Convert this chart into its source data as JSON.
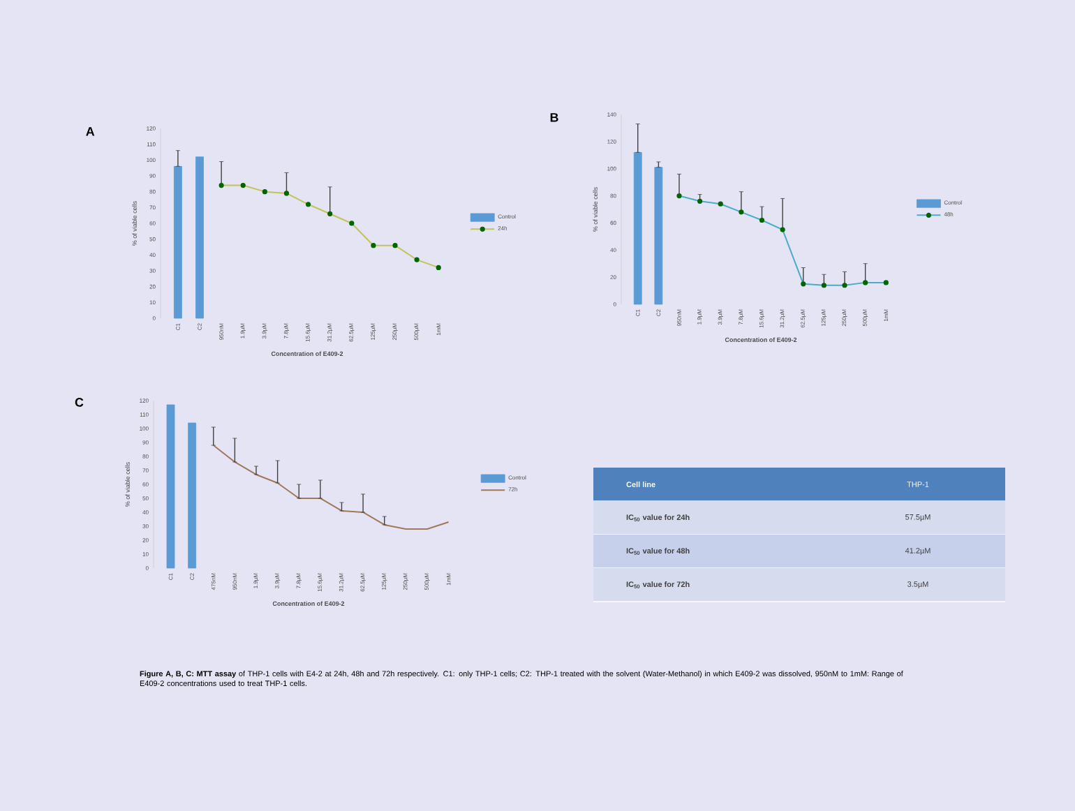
{
  "chart_data": [
    {
      "type": "line",
      "title": "A",
      "xlabel": "Concentration of E409-2",
      "ylabel": "% of viable cells",
      "categories": [
        "C1",
        "C2",
        "950nM",
        "1.9µM",
        "3.9µM",
        "7.8µM",
        "15.6µM",
        "31.2µM",
        "62.5µM",
        "125µM",
        "250µM",
        "500µM",
        "1mM"
      ],
      "ylim": [
        0,
        120
      ],
      "yticks": [
        0,
        10,
        20,
        30,
        40,
        50,
        60,
        70,
        80,
        90,
        100,
        110,
        120
      ],
      "legend": "right",
      "marker": "circle",
      "series": [
        {
          "name": "Control",
          "type": "bar",
          "color": "#5b9bd5",
          "values": [
            96,
            102,
            null,
            null,
            null,
            null,
            null,
            null,
            null,
            null,
            null,
            null,
            null
          ],
          "errors": [
            [
              96,
              106
            ],
            null,
            null,
            null,
            null,
            null,
            null,
            null,
            null,
            null,
            null,
            null,
            null
          ]
        },
        {
          "name": "24h",
          "type": "line",
          "color": "#c3c35a",
          "values": [
            null,
            null,
            84,
            84,
            80,
            79,
            72,
            66,
            60,
            46,
            46,
            37,
            32
          ],
          "errors": [
            null,
            null,
            [
              84,
              99
            ],
            null,
            null,
            [
              79,
              92
            ],
            null,
            [
              66,
              83
            ],
            null,
            null,
            null,
            null,
            null
          ]
        }
      ]
    },
    {
      "type": "line",
      "title": "B",
      "xlabel": "Concentration of E409-2",
      "ylabel": "% of viable cells",
      "categories": [
        "C1",
        "C2",
        "950nM",
        "1.9µM",
        "3.9µM",
        "7.8µM",
        "15.6µM",
        "31.2µM",
        "62.5µM",
        "125µM",
        "250µM",
        "500µM",
        "1mM"
      ],
      "ylim": [
        0,
        140
      ],
      "yticks": [
        0,
        20,
        40,
        60,
        80,
        100,
        120,
        140
      ],
      "legend": "right",
      "marker": "circle",
      "series": [
        {
          "name": "Control",
          "type": "bar",
          "color": "#5b9bd5",
          "values": [
            112,
            101,
            null,
            null,
            null,
            null,
            null,
            null,
            null,
            null,
            null,
            null,
            null
          ],
          "errors": [
            [
              112,
              133
            ],
            [
              101,
              105
            ],
            null,
            null,
            null,
            null,
            null,
            null,
            null,
            null,
            null,
            null,
            null
          ]
        },
        {
          "name": "48h",
          "type": "line",
          "color": "#4bacc6",
          "values": [
            null,
            null,
            80,
            76,
            74,
            68,
            62,
            55,
            15,
            14,
            14,
            16,
            16
          ],
          "errors": [
            null,
            null,
            [
              80,
              96
            ],
            [
              76,
              81
            ],
            null,
            [
              68,
              83
            ],
            [
              62,
              72
            ],
            [
              55,
              78
            ],
            [
              15,
              27
            ],
            [
              14,
              22
            ],
            [
              14,
              24
            ],
            [
              16,
              30
            ],
            null
          ]
        }
      ]
    },
    {
      "type": "line",
      "title": "C",
      "xlabel": "Concentration of E409-2",
      "ylabel": "% of viable cells",
      "categories": [
        "C1",
        "C2",
        "475nM",
        "950nM",
        "1.9µM",
        "3.9µM",
        "7.8µM",
        "15.6µM",
        "31.2µM",
        "62.5µM",
        "125µM",
        "250µM",
        "500µM",
        "1mM"
      ],
      "ylim": [
        0,
        120
      ],
      "yticks": [
        0,
        10,
        20,
        30,
        40,
        50,
        60,
        70,
        80,
        90,
        100,
        110,
        120
      ],
      "legend": "right",
      "annotations": [
        "**Figure A, B, C: MTT assay** of THP-1 cells with E4-2 at 24h, 48h and 72h respectively. C1: only THP-1 cells; C2: THP-1 treated with the solvent (Water-Methanol) in which E409-2 was dissolved, 950nM to 1mM: Range of E409-2 concentrations used to treat THP-1 cells."
      ],
      "series": [
        {
          "name": "Control",
          "type": "bar",
          "color": "#5b9bd5",
          "values": [
            117,
            104,
            null,
            null,
            null,
            null,
            null,
            null,
            null,
            null,
            null,
            null,
            null,
            null
          ]
        },
        {
          "name": "72h",
          "type": "line",
          "color": "#a0785a",
          "values": [
            null,
            null,
            88,
            76,
            67,
            61,
            50,
            50,
            41,
            40,
            31,
            28,
            28,
            33
          ],
          "errors": [
            null,
            null,
            [
              88,
              101
            ],
            [
              76,
              93
            ],
            [
              67,
              73
            ],
            [
              61,
              77
            ],
            [
              50,
              60
            ],
            [
              50,
              63
            ],
            [
              41,
              47
            ],
            [
              40,
              53
            ],
            [
              31,
              37
            ],
            null,
            null,
            null
          ]
        }
      ]
    },
    {
      "type": "other",
      "annotations": [
        "Cell line",
        "THP-1",
        "IC$_{50}$ value for 24h",
        "57.5µM",
        "IC$_{50}$ value for 48h",
        "41.2µM",
        "IC$_{50}$ value for 72h",
        "3.5µM"
      ]
    }
  ]
}
